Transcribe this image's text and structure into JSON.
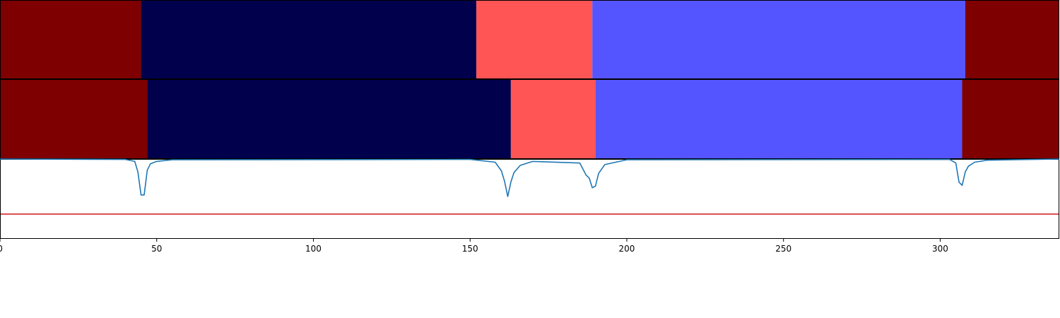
{
  "chart_data": [
    {
      "type": "segment-bar",
      "title": "",
      "xlim": [
        0,
        338
      ],
      "segments": [
        {
          "start": 0,
          "end": 45,
          "color": "#7f0000"
        },
        {
          "start": 45,
          "end": 152,
          "color": "#00004c"
        },
        {
          "start": 152,
          "end": 189,
          "color": "#ff5555"
        },
        {
          "start": 189,
          "end": 308,
          "color": "#5555ff"
        },
        {
          "start": 308,
          "end": 338,
          "color": "#7f0000"
        }
      ]
    },
    {
      "type": "segment-bar",
      "title": "",
      "xlim": [
        0,
        338
      ],
      "segments": [
        {
          "start": 0,
          "end": 47,
          "color": "#7f0000"
        },
        {
          "start": 47,
          "end": 163,
          "color": "#00004c"
        },
        {
          "start": 163,
          "end": 190,
          "color": "#ff5555"
        },
        {
          "start": 190,
          "end": 307,
          "color": "#5555ff"
        },
        {
          "start": 307,
          "end": 338,
          "color": "#7f0000"
        }
      ]
    },
    {
      "type": "line",
      "title": "",
      "xlabel": "",
      "ylabel": "",
      "xlim": [
        0,
        338
      ],
      "ylim": [
        0,
        1
      ],
      "xticks": [
        0,
        50,
        100,
        150,
        200,
        250,
        300
      ],
      "threshold": {
        "value": 0.31,
        "color": "#d62728"
      },
      "series": [
        {
          "color": "#1f77b4",
          "x": [
            0,
            40,
            43,
            44,
            45,
            46,
            47,
            48,
            50,
            55,
            150,
            158,
            160,
            161,
            162,
            163,
            164,
            166,
            170,
            185,
            187,
            188,
            189,
            190,
            191,
            193,
            200,
            303,
            305,
            306,
            307,
            308,
            309,
            311,
            315,
            338
          ],
          "y": [
            1,
            0.995,
            0.97,
            0.84,
            0.55,
            0.55,
            0.86,
            0.94,
            0.97,
            0.99,
            0.995,
            0.96,
            0.85,
            0.72,
            0.53,
            0.71,
            0.83,
            0.92,
            0.97,
            0.95,
            0.8,
            0.76,
            0.64,
            0.66,
            0.82,
            0.93,
            0.99,
            0.995,
            0.95,
            0.71,
            0.67,
            0.84,
            0.91,
            0.96,
            0.985,
            1
          ]
        }
      ]
    }
  ]
}
